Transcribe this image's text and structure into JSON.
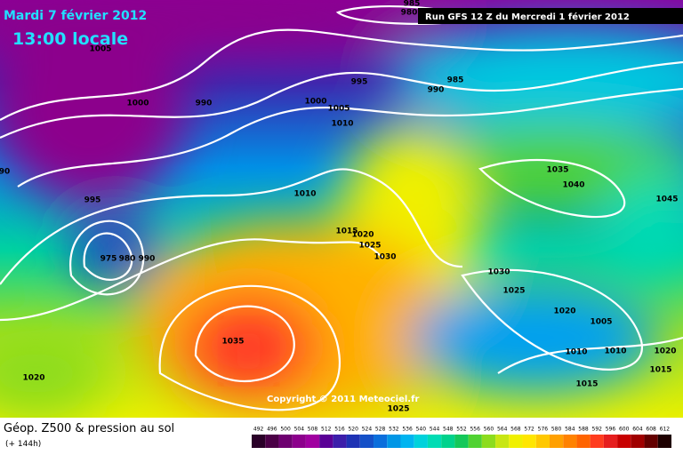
{
  "header": {
    "date": "Mardi 7 février 2012",
    "time": "13:00 locale",
    "run": "Run GFS 12 Z du Mercredi 1 février 2012"
  },
  "map": {
    "copyright": "Copyright © 2011 Meteociel.fr",
    "isobar_labels": [
      "985",
      "980",
      "1005",
      "995",
      "985",
      "990",
      "1000",
      "990",
      "1000",
      "1005",
      "1010",
      "1035",
      "1040",
      "1045",
      "90",
      "995",
      "1010",
      "1015",
      "1020",
      "1025",
      "1030",
      "975",
      "980",
      "990",
      "1030",
      "1025",
      "1020",
      "1005",
      "1010",
      "1010",
      "1020",
      "1015",
      "1035",
      "1020",
      "1015",
      "1025"
    ]
  },
  "legend": {
    "title": "Géop. Z500 & pression au sol",
    "lead": "(+ 144h)",
    "scale": {
      "labels": [
        492,
        496,
        500,
        504,
        508,
        512,
        516,
        520,
        524,
        528,
        532,
        536,
        540,
        544,
        548,
        552,
        556,
        560,
        564,
        568,
        572,
        576,
        580,
        584,
        588,
        592,
        596,
        600,
        604,
        608,
        612
      ],
      "colors": [
        "#2a0028",
        "#4b0046",
        "#6e0070",
        "#8c008c",
        "#a000a0",
        "#5a0096",
        "#3c1eaa",
        "#1e32b4",
        "#1450c8",
        "#0a6edc",
        "#0096e6",
        "#00b4f0",
        "#00d2dc",
        "#00dcb4",
        "#00d28c",
        "#14c85a",
        "#50d232",
        "#8cdc1e",
        "#c8e614",
        "#f0f000",
        "#ffe600",
        "#ffc800",
        "#ffa000",
        "#ff8200",
        "#ff6400",
        "#ff3c1e",
        "#e61e1e",
        "#c80000",
        "#a00000",
        "#640000",
        "#1e0000"
      ]
    }
  }
}
